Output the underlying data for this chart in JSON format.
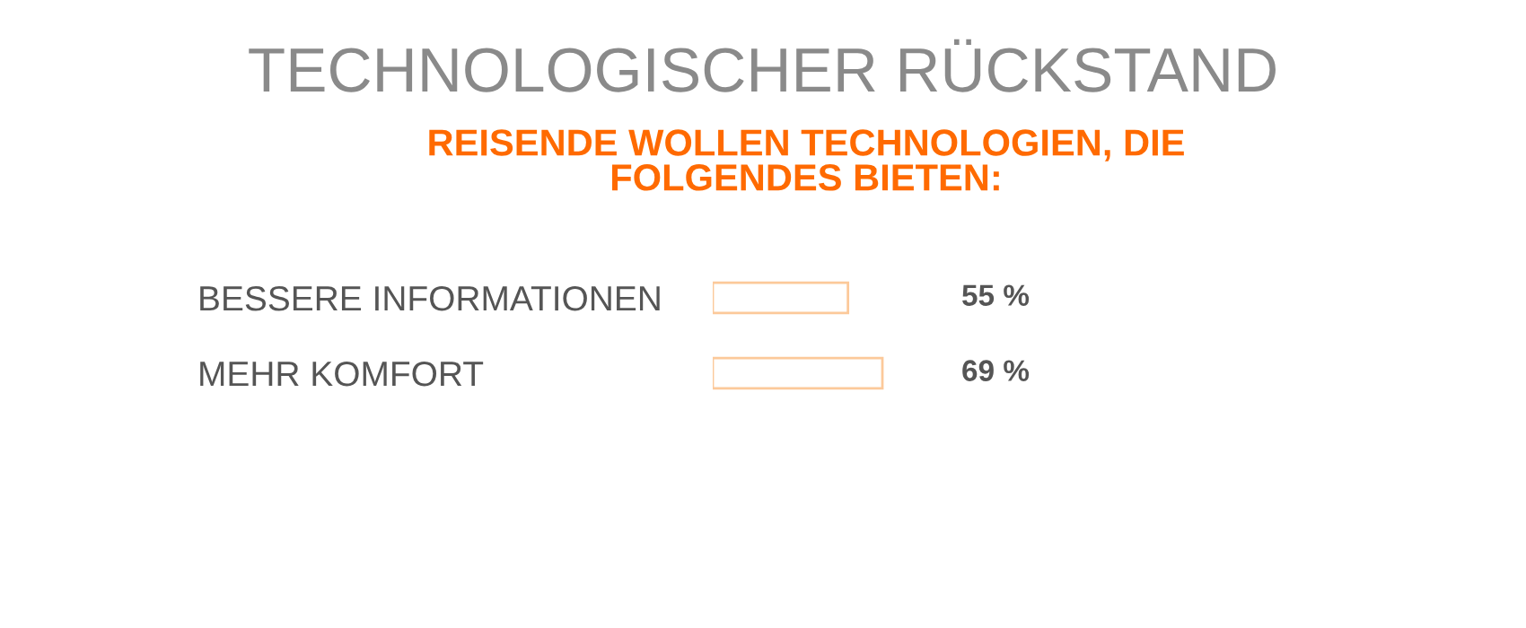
{
  "chart_data": {
    "type": "bar",
    "orientation": "horizontal",
    "title": "TECHNOLOGISCHER RÜCKSTAND",
    "subtitle": "REISENDE WOLLEN TECHNOLOGIEN, DIE\nFOLGENDES BIETEN:",
    "categories": [
      "BESSERE INFORMATIONEN",
      "MEHR KOMFORT"
    ],
    "values": [
      55,
      69
    ],
    "value_labels": [
      "55 %",
      "69 %"
    ],
    "color": "#fcc99a",
    "grid": false,
    "legend": false
  }
}
